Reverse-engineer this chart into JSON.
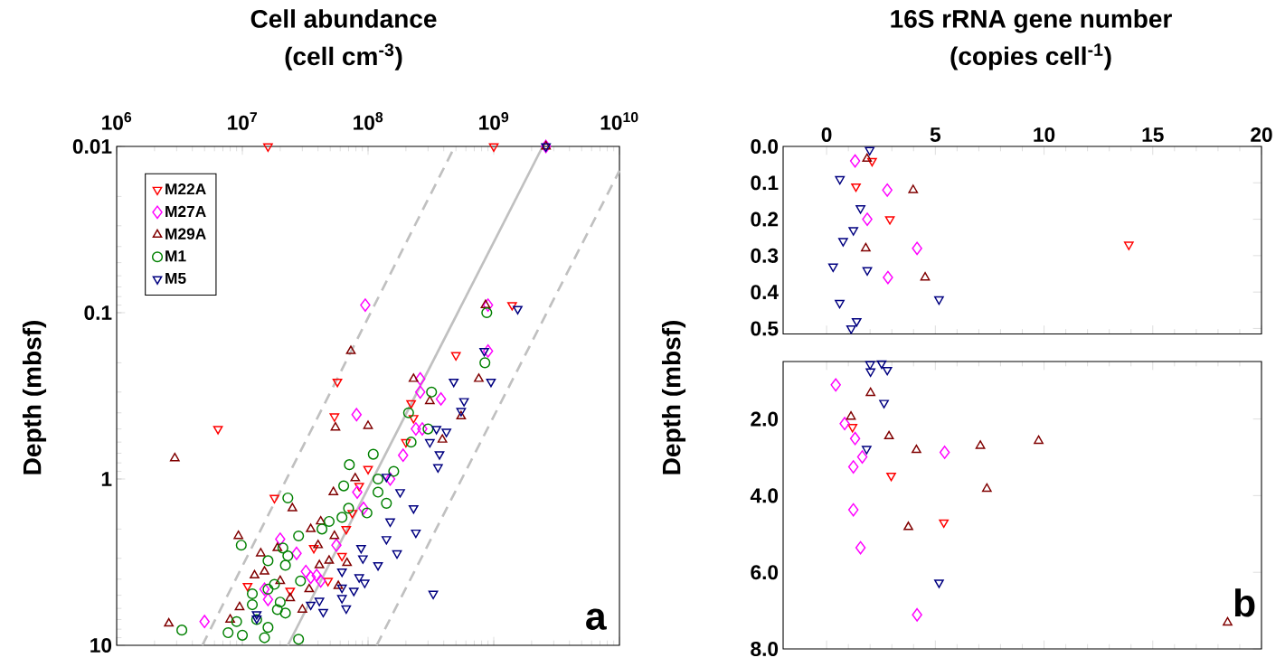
{
  "chart_data": [
    {
      "type": "scatter",
      "title": "Cell abundance",
      "subtitle": "(cell cm$^{-3}$)",
      "ylabel": "Depth (mbsf)",
      "log": "xy",
      "xlim": [
        1000000,
        10000000000
      ],
      "ylim": [
        10,
        0.01
      ],
      "xticks": [
        {
          "value": 1000000,
          "label": "10$^{6}$"
        },
        {
          "value": 10000000,
          "label": "10$^{7}$"
        },
        {
          "value": 100000000,
          "label": "10$^{8}$"
        },
        {
          "value": 1000000000,
          "label": "10$^{9}$"
        },
        {
          "value": 10000000000,
          "label": "10$^{10}$"
        }
      ],
      "yticks": [
        0.01,
        0.1,
        1,
        10
      ],
      "legend": "top left",
      "annotations": [
        "a"
      ],
      "series": [
        {
          "name": "M22A",
          "color": "#ff0000",
          "marker": "triangle_down",
          "x": [
            16000000.0,
            1000000000.0,
            1400000000.0,
            500000000.0,
            57000000.0,
            220000000.0,
            6400000.0,
            54000000.0,
            100000000.0,
            85000000.0,
            18000000.0,
            75000000.0,
            37000000.0,
            62000000.0,
            11000000.0,
            24000000.0,
            48000000.0,
            67000000.0,
            230000000.0,
            200000000.0
          ],
          "values": [
            0.01,
            0.01,
            0.09,
            0.18,
            0.26,
            0.35,
            0.5,
            0.42,
            0.87,
            1.1,
            1.3,
            1.6,
            2.6,
            2.9,
            4.4,
            4.7,
            4.1,
            2.0,
            0.43,
            0.6
          ]
        },
        {
          "name": "M27A",
          "color": "#ff00ff",
          "marker": "diamond",
          "x": [
            2600000000.0,
            95000000.0,
            900000000.0,
            900000000.0,
            260000000.0,
            260000000.0,
            380000000.0,
            81000000.0,
            82000000.0,
            92000000.0,
            20000000.0,
            27000000.0,
            56000000.0,
            39000000.0,
            35000000.0,
            15000000.0,
            16000000.0,
            5000000.0,
            32000000.0,
            42000000.0,
            240000000.0,
            270000000.0,
            190000000.0,
            150000000.0
          ],
          "values": [
            0.01,
            0.09,
            0.09,
            0.17,
            0.25,
            0.3,
            0.33,
            0.41,
            1.2,
            1.5,
            2.3,
            2.8,
            2.5,
            3.8,
            3.9,
            4.6,
            5.3,
            7.2,
            3.6,
            4.1,
            0.5,
            0.5,
            0.72,
            1.0
          ]
        },
        {
          "name": "M29A",
          "color": "#800000",
          "marker": "triangle",
          "x": [
            2600000000.0,
            860000000.0,
            73000000.0,
            230000000.0,
            760000000.0,
            310000000.0,
            2900000.0,
            55000000.0,
            100000000.0,
            79000000.0,
            53000000.0,
            25000000.0,
            42000000.0,
            35000000.0,
            9300000.0,
            14000000.0,
            19000000.0,
            40000000.0,
            54000000.0,
            68000000.0,
            49000000.0,
            15000000.0,
            12500000.0,
            20000000.0,
            41000000.0,
            34000000.0,
            58000000.0,
            24000000.0,
            9500000.0,
            8000000.0,
            30000000.0,
            2600000.0,
            550000000.0,
            390000000.0
          ],
          "values": [
            0.01,
            0.09,
            0.17,
            0.25,
            0.25,
            0.34,
            0.75,
            0.49,
            0.48,
            0.99,
            1.2,
            1.5,
            1.8,
            2.0,
            2.2,
            2.8,
            2.6,
            2.5,
            2.2,
            3.2,
            3.1,
            3.6,
            3.8,
            4.1,
            3.3,
            4.6,
            4.4,
            5.2,
            5.9,
            7.0,
            6.1,
            7.4,
            0.42,
            0.58
          ]
        },
        {
          "name": "M1",
          "color": "#008000",
          "marker": "circle",
          "x": [
            880000000.0,
            850000000.0,
            320000000.0,
            110000000.0,
            71000000.0,
            120000000.0,
            120000000.0,
            64000000.0,
            23000000.0,
            98000000.0,
            70000000.0,
            62000000.0,
            49000000.0,
            43000000.0,
            28000000.0,
            9800000.0,
            21000000.0,
            23000000.0,
            16000000.0,
            22000000.0,
            29000000.0,
            16000000.0,
            18000000.0,
            12000000.0,
            12000000.0,
            20000000.0,
            19000000.0,
            22000000.0,
            9000000.0,
            7700000.0,
            10000000.0,
            15000000.0,
            16000000.0,
            3300000.0,
            28000000.0,
            13000000.0,
            210000000.0,
            300000000.0,
            220000000.0,
            160000000.0,
            140000000.0
          ],
          "values": [
            0.1,
            0.2,
            0.3,
            0.71,
            0.82,
            1.0,
            1.2,
            1.1,
            1.3,
            1.6,
            1.5,
            1.7,
            1.8,
            2.0,
            2.2,
            2.5,
            2.6,
            2.9,
            3.1,
            3.3,
            4.1,
            4.6,
            4.3,
            4.9,
            5.7,
            5.5,
            6.1,
            6.4,
            7.2,
            8.4,
            8.7,
            9.0,
            7.8,
            8.1,
            9.2,
            7.0,
            0.4,
            0.5,
            0.6,
            0.9,
            1.4
          ]
        },
        {
          "name": "M5",
          "color": "#000080",
          "marker": "triangle_down",
          "x": [
            2600000000.0,
            1550000000.0,
            840000000.0,
            480000000.0,
            950000000.0,
            580000000.0,
            550000000.0,
            350000000.0,
            420000000.0,
            310000000.0,
            370000000.0,
            360000000.0,
            140000000.0,
            180000000.0,
            230000000.0,
            150000000.0,
            240000000.0,
            140000000.0,
            170000000.0,
            120000000.0,
            330000000.0,
            88000000.0,
            91000000.0,
            62000000.0,
            85000000.0,
            94000000.0,
            62000000.0,
            77000000.0,
            62000000.0,
            67000000.0,
            41000000.0,
            35000000.0,
            44000000.0,
            13000000.0,
            13000000.0
          ],
          "values": [
            0.01,
            0.095,
            0.17,
            0.26,
            0.26,
            0.34,
            0.39,
            0.5,
            0.52,
            0.6,
            0.71,
            0.85,
            0.97,
            1.2,
            1.5,
            1.8,
            2.1,
            2.3,
            2.8,
            3.3,
            4.9,
            2.6,
            3.0,
            3.6,
            3.9,
            4.2,
            4.5,
            4.7,
            5.2,
            6.0,
            5.4,
            5.7,
            6.3,
            6.5,
            6.9
          ]
        },
        {
          "type": "line",
          "color": "#c0c0c0",
          "line_style": "dashed",
          "x": [
            4800000.0,
            490000000.0
          ],
          "values": [
            10,
            0.01
          ]
        },
        {
          "type": "line",
          "color": "#c0c0c0",
          "line_style": "solid",
          "x": [
            23000000.0,
            2450000000.0
          ],
          "values": [
            10,
            0.01
          ]
        },
        {
          "type": "line",
          "color": "#c0c0c0",
          "line_style": "dashed",
          "x": [
            117000000.0,
            10000000000.0
          ],
          "values": [
            10,
            0.014
          ]
        }
      ]
    },
    {
      "type": "scatter",
      "title": "16S rRNA gene number",
      "subtitle": "(copies cell$^{-1}$)",
      "xlim": [
        -2,
        20
      ],
      "ylim": [
        0.515,
        0
      ],
      "xticks": [
        0,
        5,
        10,
        15,
        20
      ],
      "yticks": [
        {
          "value": 0,
          "label": "0.0"
        },
        {
          "value": 0.1,
          "label": "0.1"
        },
        {
          "value": 0.2,
          "label": "0.2"
        },
        {
          "value": 0.3,
          "label": "0.3"
        },
        {
          "value": 0.4,
          "label": "0.4"
        },
        {
          "value": 0.5,
          "label": "0.5"
        }
      ],
      "series": [
        {
          "color": "#ff0000",
          "marker": "triangle_down",
          "x": [
            2.09,
            1.35,
            2.91,
            13.9
          ],
          "values": [
            0.04,
            0.11,
            0.2,
            0.27
          ]
        },
        {
          "color": "#ff00ff",
          "marker": "diamond",
          "x": [
            1.31,
            2.79,
            1.87,
            4.16,
            2.82
          ],
          "values": [
            0.04,
            0.12,
            0.2,
            0.28,
            0.36
          ]
        },
        {
          "color": "#800000",
          "marker": "triangle",
          "x": [
            1.86,
            3.98,
            1.8,
            4.53
          ],
          "values": [
            0.034,
            0.12,
            0.28,
            0.36
          ]
        },
        {
          "color": "#000080",
          "marker": "triangle_down",
          "x": [
            1.98,
            0.61,
            1.56,
            1.23,
            0.76,
            0.3,
            1.87,
            0.6,
            5.17,
            1.38,
            1.13
          ],
          "values": [
            0.01,
            0.09,
            0.17,
            0.23,
            0.26,
            0.33,
            0.34,
            0.43,
            0.42,
            0.48,
            0.5
          ]
        }
      ]
    },
    {
      "type": "scatter",
      "ylabel": "Depth (mbsf)",
      "xlim": [
        -2,
        20
      ],
      "ylim": [
        8,
        0.5
      ],
      "xticks": [
        0,
        5,
        10,
        15,
        20
      ],
      "tick_labels": "y",
      "yticks": [
        {
          "value": 2,
          "label": "2.0"
        },
        {
          "value": 4,
          "label": "4.0"
        },
        {
          "value": 6,
          "label": "6.0"
        },
        {
          "value": 8,
          "label": "8.0"
        }
      ],
      "annotations": [
        "b"
      ],
      "series": [
        {
          "color": "#ff0000",
          "marker": "triangle_down",
          "x": [
            1.19,
            2.97,
            5.39
          ],
          "values": [
            2.21,
            3.48,
            4.7
          ]
        },
        {
          "color": "#ff00ff",
          "marker": "diamond",
          "x": [
            0.42,
            0.83,
            1.31,
            1.64,
            1.23,
            5.43,
            1.23,
            1.56,
            4.16
          ],
          "values": [
            1.11,
            2.12,
            2.51,
            2.99,
            3.25,
            2.87,
            4.37,
            5.36,
            7.11
          ]
        },
        {
          "color": "#800000",
          "marker": "triangle",
          "x": [
            2.02,
            1.12,
            2.87,
            4.13,
            7.07,
            9.75,
            7.37,
            3.76,
            18.44
          ],
          "values": [
            1.32,
            1.94,
            2.45,
            2.81,
            2.7,
            2.57,
            3.82,
            4.82,
            7.31
          ]
        },
        {
          "color": "#000080",
          "marker": "triangle_down",
          "x": [
            2.0,
            2.53,
            2.02,
            2.79,
            2.64,
            1.84,
            5.17
          ],
          "values": [
            0.57,
            0.55,
            0.76,
            0.72,
            1.58,
            2.78,
            6.27
          ]
        }
      ]
    }
  ]
}
